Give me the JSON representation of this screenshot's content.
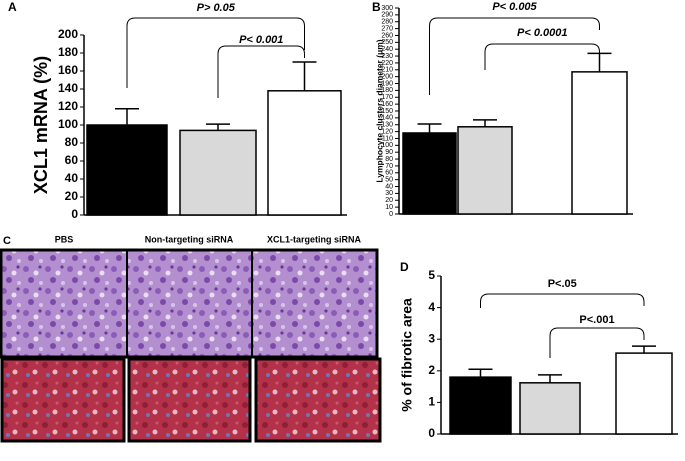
{
  "chart_data": [
    {
      "type": "bar",
      "panel": "A",
      "y_label": "XCL1 mRNA (%)",
      "categories": [
        null,
        null,
        null
      ],
      "values": [
        100,
        94,
        138
      ],
      "errors": [
        18,
        7,
        32
      ],
      "colors": [
        "#000000",
        "#d9d9d9",
        "#ffffff"
      ],
      "ylim": [
        0,
        200
      ],
      "yticks": [
        0,
        20,
        40,
        60,
        80,
        100,
        120,
        140,
        160,
        180,
        200
      ],
      "annotations": [
        "P> 0.05",
        "P< 0.001"
      ]
    },
    {
      "type": "bar",
      "panel": "B",
      "y_label": "Lymphocyte clusters diameter (μm)",
      "categories": [
        null,
        null,
        null
      ],
      "values": [
        118,
        127,
        207
      ],
      "errors": [
        13,
        10,
        27
      ],
      "colors": [
        "#000000",
        "#d9d9d9",
        "#ffffff"
      ],
      "ylim": [
        0,
        300
      ],
      "yticks": [
        0,
        10,
        20,
        30,
        40,
        50,
        60,
        70,
        80,
        90,
        100,
        110,
        120,
        130,
        140,
        150,
        160,
        170,
        180,
        190,
        200,
        210,
        220,
        230,
        240,
        250,
        260,
        270,
        280,
        290,
        300
      ],
      "annotations": [
        "P< 0.005",
        "P< 0.0001"
      ]
    },
    {
      "type": "bar",
      "panel": "D",
      "y_label": "% of fibrotic area",
      "categories": [
        null,
        null,
        null
      ],
      "values": [
        1.8,
        1.62,
        2.56
      ],
      "errors": [
        0.25,
        0.25,
        0.22
      ],
      "colors": [
        "#000000",
        "#d9d9d9",
        "#ffffff"
      ],
      "ylim": [
        0,
        5
      ],
      "yticks": [
        0,
        1,
        2,
        3,
        4,
        5
      ],
      "annotations": [
        "P<.05",
        "P<.001"
      ]
    }
  ],
  "image_panel": {
    "label": "C",
    "columns": [
      "PBS",
      "Non-targeting siRNA",
      "XCL1-targeting siRNA"
    ]
  }
}
